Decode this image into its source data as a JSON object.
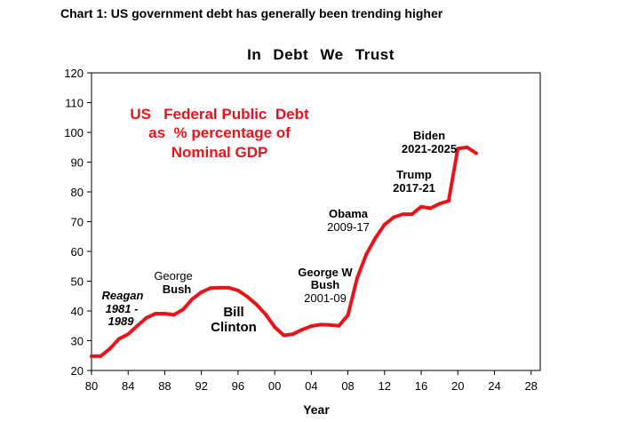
{
  "page_title": "Chart 1: US government debt has generally been trending higher",
  "chart_data": {
    "type": "line",
    "title": "In Debt We Trust",
    "xlabel": "Year",
    "ylabel": "",
    "xlim": [
      1980,
      2029
    ],
    "ylim": [
      20,
      120
    ],
    "x_ticks": [
      {
        "value": 1980,
        "label": "80"
      },
      {
        "value": 1984,
        "label": "84"
      },
      {
        "value": 1988,
        "label": "88"
      },
      {
        "value": 1992,
        "label": "92"
      },
      {
        "value": 1996,
        "label": "96"
      },
      {
        "value": 2000,
        "label": "00"
      },
      {
        "value": 2004,
        "label": "04"
      },
      {
        "value": 2008,
        "label": "08"
      },
      {
        "value": 2012,
        "label": "12"
      },
      {
        "value": 2016,
        "label": "16"
      },
      {
        "value": 2020,
        "label": "20"
      },
      {
        "value": 2024,
        "label": "24"
      },
      {
        "value": 2028,
        "label": "28"
      }
    ],
    "y_ticks": [
      20,
      30,
      40,
      50,
      60,
      70,
      80,
      90,
      100,
      110,
      120
    ],
    "series_color": "#e8141b",
    "series": [
      {
        "x": [
          1980,
          1981,
          1982,
          1983,
          1984,
          1985,
          1986,
          1987,
          1988,
          1989,
          1990,
          1991,
          1992,
          1993,
          1994,
          1995,
          1996,
          1997,
          1998,
          1999,
          2000,
          2001,
          2002,
          2003,
          2004,
          2005,
          2006,
          2007,
          2008,
          2009,
          2010,
          2011,
          2012,
          2013,
          2014,
          2015,
          2016,
          2017,
          2018,
          2019,
          2020,
          2021,
          2022
        ],
        "values": [
          24.8,
          24.8,
          27.3,
          30.6,
          32.2,
          35.0,
          37.7,
          39.1,
          39.1,
          38.7,
          40.5,
          44.0,
          46.3,
          47.7,
          47.8,
          47.8,
          46.9,
          44.8,
          42.2,
          38.9,
          34.6,
          31.8,
          32.2,
          33.7,
          34.9,
          35.4,
          35.3,
          35.0,
          38.6,
          51.0,
          59.0,
          64.5,
          69.0,
          71.5,
          72.5,
          72.5,
          75.0,
          74.5,
          76.0,
          77.0,
          94.5,
          95.0,
          93.0
        ]
      }
    ],
    "annotations": {
      "red_note": [
        "US   Federal Public  Debt",
        "as  % percentage of",
        "Nominal GDP"
      ],
      "reagan": [
        "Reagan",
        "1981 -",
        "1989"
      ],
      "george_bush": [
        "George",
        "Bush"
      ],
      "bill_clinton": [
        "Bill",
        "Clinton"
      ],
      "george_w_bush": [
        "George W",
        "Bush",
        "2001-09"
      ],
      "obama": [
        "Obama",
        "2009-17"
      ],
      "trump": [
        "Trump",
        "2017-21"
      ],
      "biden": [
        "Biden",
        "2021-2025"
      ]
    }
  }
}
